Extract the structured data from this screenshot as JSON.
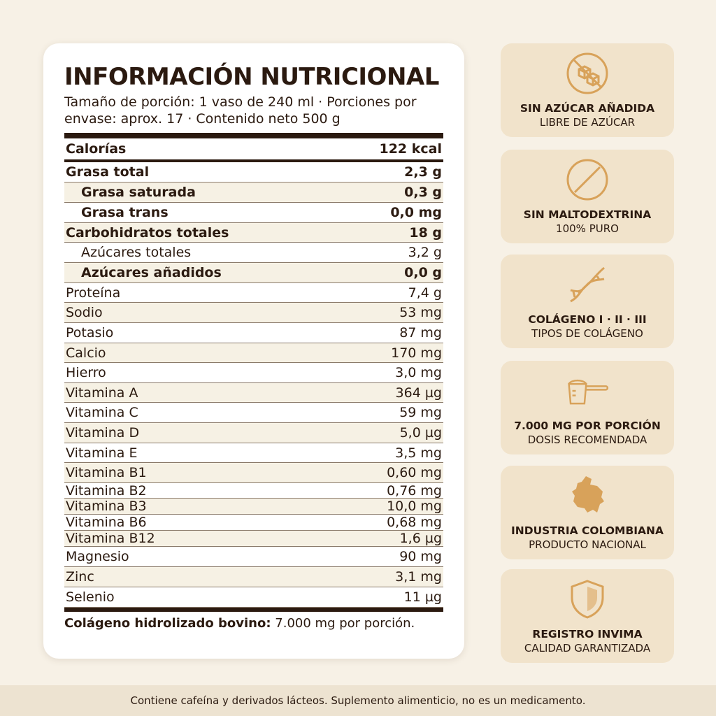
{
  "label": {
    "title": "INFORMACIÓN NUTRICIONAL",
    "subtitle": "Tamaño de porción: 1 vaso de 240 ml · Porciones por envase: aprox. 17 · Contenido neto 500 g",
    "calories": {
      "label": "Calorías",
      "value": "122 kcal"
    },
    "rows": [
      {
        "label": "Grasa total",
        "value": "2,3 g",
        "bold": true
      },
      {
        "label": "Grasa saturada",
        "value": "0,3 g",
        "bold": true,
        "indent": true
      },
      {
        "label": "Grasa trans",
        "value": "0,0 mg",
        "bold": true,
        "indent": true
      },
      {
        "label": "Carbohidratos totales",
        "value": "18 g",
        "bold": true
      },
      {
        "label": "Azúcares totales",
        "value": "3,2 g",
        "indent": true
      },
      {
        "label": "Azúcares añadidos",
        "value": "0,0 g",
        "bold": true,
        "indent": true
      },
      {
        "label": "Proteína",
        "value": "7,4 g"
      },
      {
        "label": "Sodio",
        "value": "53 mg"
      },
      {
        "label": "Potasio",
        "value": "87 mg"
      },
      {
        "label": "Calcio",
        "value": "170 mg"
      },
      {
        "label": "Hierro",
        "value": "3,0 mg"
      },
      {
        "label": "Vitamina A",
        "value": "364 µg"
      },
      {
        "label": "Vitamina C",
        "value": "59 mg"
      },
      {
        "label": "Vitamina D",
        "value": "5,0 µg"
      },
      {
        "label": "Vitamina E",
        "value": "3,5 mg"
      },
      {
        "label": "Vitamina B1",
        "value": "0,60 mg"
      },
      {
        "label": "Vitamina B2",
        "value": "0,76 mg"
      },
      {
        "label": "Vitamina B3",
        "value": "10,0 mg"
      },
      {
        "label": "Vitamina B6",
        "value": "0,68 mg"
      },
      {
        "label": "Vitamina B12",
        "value": "1,6 µg"
      },
      {
        "label": "Magnesio",
        "value": "90 mg"
      },
      {
        "label": "Zinc",
        "value": "3,1 mg"
      },
      {
        "label": "Selenio",
        "value": "11 µg"
      }
    ],
    "footnote_bold": "Colágeno hidrolizado bovino:",
    "footnote_rest": " 7.000 mg por porción."
  },
  "badges": [
    {
      "icon": "no-sugar-cubes-icon",
      "title": "SIN AZÚCAR AÑADIDA",
      "subtitle": "LIBRE DE AZÚCAR"
    },
    {
      "icon": "no-symbol-icon",
      "title": "SIN MALTODEXTRINA",
      "subtitle": "100% PURO"
    },
    {
      "icon": "dna-icon",
      "title": "COLÁGENO I · II · III",
      "subtitle": "TIPOS DE COLÁGENO"
    },
    {
      "icon": "measuring-scoop-icon",
      "title": "7.000 MG POR PORCIÓN",
      "subtitle": "DOSIS RECOMENDADA"
    },
    {
      "icon": "colombia-map-icon",
      "title": "INDUSTRIA COLOMBIANA",
      "subtitle": "PRODUCTO NACIONAL"
    },
    {
      "icon": "shield-icon",
      "title": "REGISTRO INVIMA",
      "subtitle": "CALIDAD GARANTIZADA"
    }
  ],
  "colors": {
    "accent": "#d8a25a",
    "dark": "#2b1a10",
    "badge_bg": "#f1e3cb",
    "page_bg": "#f7f1e6"
  },
  "disclaimer": "Contiene cafeína y derivados lácteos. Suplemento alimenticio, no es un medicamento."
}
